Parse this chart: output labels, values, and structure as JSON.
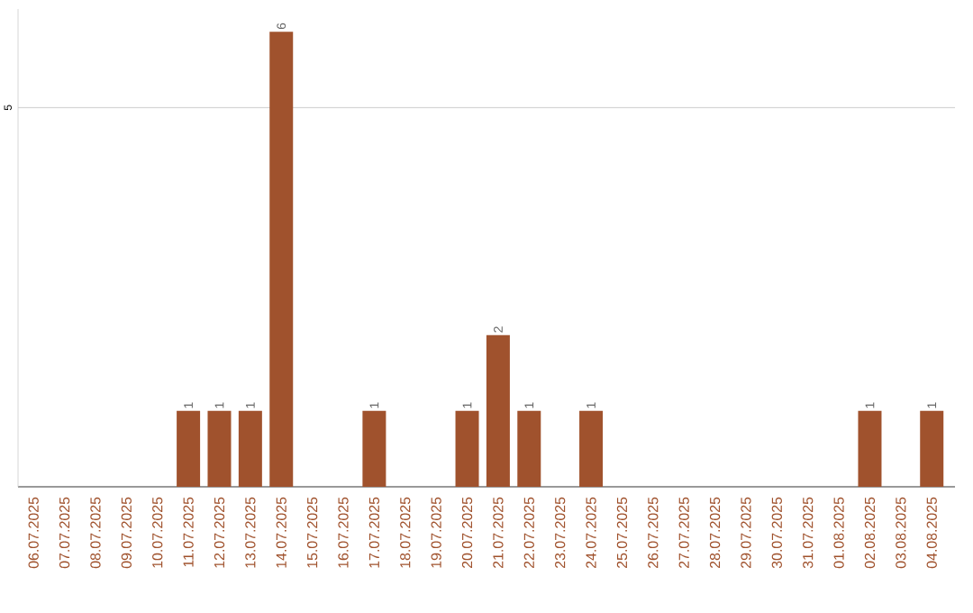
{
  "chart_data": {
    "type": "bar",
    "categories": [
      "06.07.2025",
      "07.07.2025",
      "08.07.2025",
      "09.07.2025",
      "10.07.2025",
      "11.07.2025",
      "12.07.2025",
      "13.07.2025",
      "14.07.2025",
      "15.07.2025",
      "16.07.2025",
      "17.07.2025",
      "18.07.2025",
      "19.07.2025",
      "20.07.2025",
      "21.07.2025",
      "22.07.2025",
      "23.07.2025",
      "24.07.2025",
      "25.07.2025",
      "26.07.2025",
      "27.07.2025",
      "28.07.2025",
      "29.07.2025",
      "30.07.2025",
      "31.07.2025",
      "01.08.2025",
      "02.08.2025",
      "03.08.2025",
      "04.08.2025"
    ],
    "values": [
      0,
      0,
      0,
      0,
      0,
      1,
      1,
      1,
      6,
      0,
      0,
      1,
      0,
      0,
      1,
      2,
      1,
      0,
      1,
      0,
      0,
      0,
      0,
      0,
      0,
      0,
      0,
      1,
      0,
      1
    ],
    "value_labels": [
      null,
      null,
      null,
      null,
      null,
      "1",
      "1",
      "1",
      "6",
      null,
      null,
      "1",
      null,
      null,
      "1",
      "2",
      "1",
      null,
      "1",
      null,
      null,
      null,
      null,
      null,
      null,
      null,
      null,
      "1",
      null,
      "1"
    ],
    "color": "#a0522d",
    "ylim": [
      0,
      6.3
    ],
    "yticks": [
      5
    ],
    "grid": "y"
  }
}
